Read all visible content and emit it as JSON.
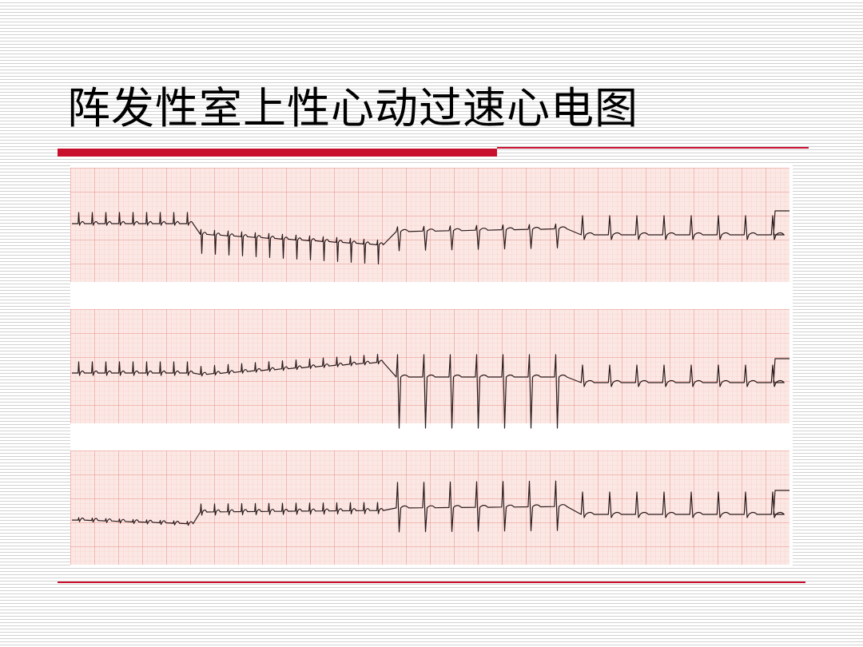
{
  "slide": {
    "title": "阵发性室上性心动过速心电图"
  },
  "ecg": {
    "strip_count": 3,
    "grid_minor_color": "#f6c9c4",
    "grid_major_color": "#ec8f86",
    "paper_color": "#fbe8e5",
    "trace_color": "#2a1a1a",
    "accent_color": "#c8102e"
  }
}
